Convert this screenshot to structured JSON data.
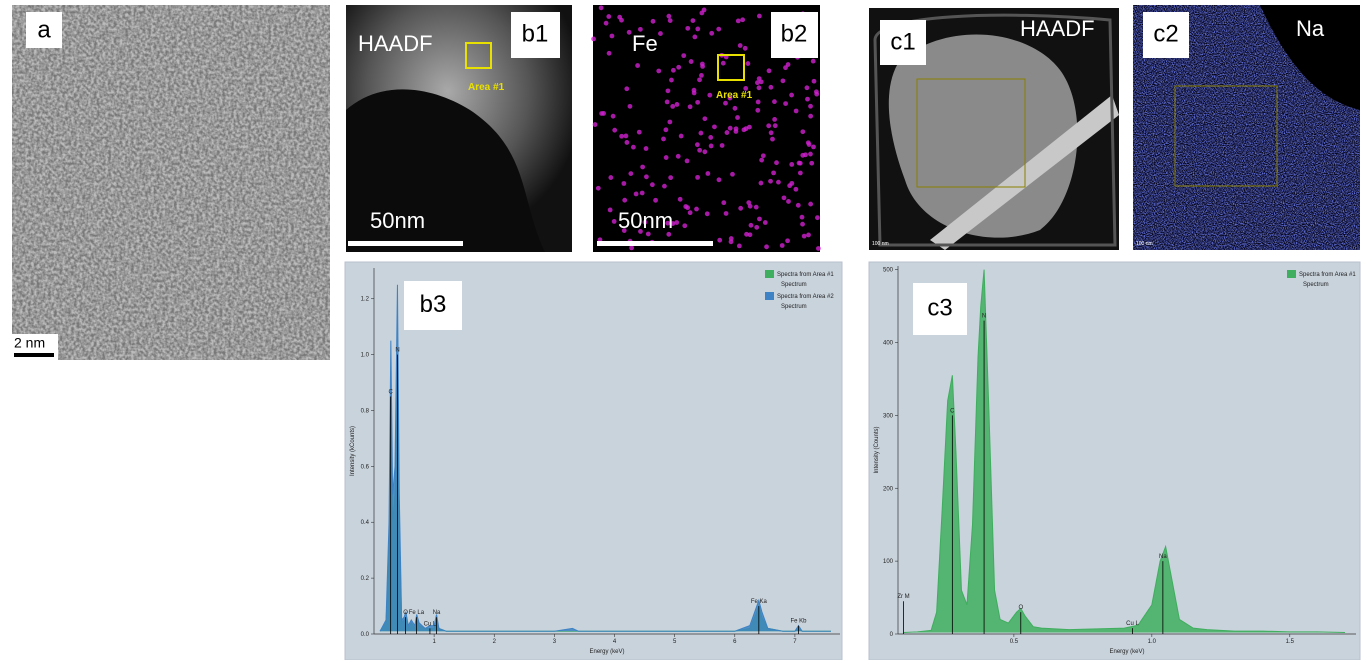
{
  "panels": {
    "a": {
      "label": "a",
      "scale_bar": "2 nm"
    },
    "b1": {
      "label": "b1",
      "title": "HAADF",
      "area": "Area #1",
      "scale_bar": "50nm"
    },
    "b2": {
      "label": "b2",
      "title": "Fe",
      "area": "Area #1",
      "scale_bar": "50nm"
    },
    "c1": {
      "label": "c1",
      "title": "HAADF",
      "scale_bar": "100 nm"
    },
    "c2": {
      "label": "c2",
      "title": "Na",
      "scale_bar": "100 nm"
    }
  },
  "chart_data": [
    {
      "type": "area",
      "panel_label": "b3",
      "x_label": "Energy (keV)",
      "y_label": "Intensity (kCounts)",
      "xlim": [
        0,
        7.75
      ],
      "ylim": [
        0,
        1.31
      ],
      "xticks": [
        1,
        2,
        3,
        4,
        5,
        6,
        7
      ],
      "yticks": [
        {
          "value": 0,
          "label": "0.0"
        },
        0.2,
        0.4,
        0.6,
        0.8,
        {
          "value": 1,
          "label": "1.0"
        },
        1.2
      ],
      "x": [
        0.1,
        0.2,
        0.25,
        0.28,
        0.31,
        0.35,
        0.39,
        0.42,
        0.46,
        0.5,
        0.53,
        0.57,
        0.62,
        0.68,
        0.71,
        0.75,
        0.85,
        0.93,
        1.0,
        1.04,
        1.08,
        1.2,
        1.5,
        2.0,
        2.5,
        3.0,
        3.3,
        3.4,
        3.6,
        4.0,
        4.5,
        5.0,
        5.5,
        6.0,
        6.25,
        6.35,
        6.4,
        6.45,
        6.55,
        6.8,
        7.0,
        7.06,
        7.12,
        7.3,
        7.6
      ],
      "series": [
        {
          "name": "Spectra from Area #1",
          "description": "Spectrum",
          "color": "#3fae5e",
          "values": [
            0.01,
            0.04,
            0.3,
            0.85,
            0.4,
            0.5,
            1.0,
            0.4,
            0.04,
            0.05,
            0.06,
            0.02,
            0.04,
            0.02,
            0.05,
            0.03,
            0.02,
            0.02,
            0.02,
            0.05,
            0.02,
            0.01,
            0.01,
            0.01,
            0.01,
            0.01,
            0.01,
            0.01,
            0.01,
            0.01,
            0.01,
            0.01,
            0.01,
            0.01,
            0.02,
            0.07,
            0.1,
            0.06,
            0.02,
            0.01,
            0.01,
            0.02,
            0.01,
            0.01,
            0.01
          ]
        },
        {
          "name": "Spectra from Area #2",
          "description": "Spectrum",
          "color": "#3d82c4",
          "values": [
            0.01,
            0.05,
            0.4,
            1.05,
            0.5,
            0.6,
            1.25,
            0.5,
            0.05,
            0.06,
            0.08,
            0.03,
            0.05,
            0.03,
            0.07,
            0.04,
            0.02,
            0.03,
            0.03,
            0.07,
            0.02,
            0.01,
            0.01,
            0.01,
            0.01,
            0.01,
            0.02,
            0.01,
            0.01,
            0.01,
            0.01,
            0.01,
            0.01,
            0.01,
            0.03,
            0.09,
            0.12,
            0.08,
            0.02,
            0.01,
            0.01,
            0.03,
            0.01,
            0.01,
            0.01
          ]
        }
      ],
      "annotations": [
        {
          "label": "C",
          "x": 0.277,
          "y": 0.85
        },
        {
          "label": "N",
          "x": 0.392,
          "y": 1.0
        },
        {
          "label": "O",
          "x": 0.525,
          "y": 0.06
        },
        {
          "label": "Fe La",
          "x": 0.705,
          "y": 0.06
        },
        {
          "label": "Cu L",
          "x": 0.93,
          "y": 0.02
        },
        {
          "label": "Na",
          "x": 1.04,
          "y": 0.06
        },
        {
          "label": "Fe Ka",
          "x": 6.4,
          "y": 0.1
        },
        {
          "label": "Fe Kb",
          "x": 7.06,
          "y": 0.03
        }
      ]
    },
    {
      "type": "area",
      "panel_label": "c3",
      "x_label": "Energy (keV)",
      "y_label": "Intensity (Counts)",
      "xlim": [
        0.08,
        1.74
      ],
      "ylim": [
        0,
        505
      ],
      "xticks": [
        0.5,
        {
          "value": 1,
          "label": "1.0"
        },
        1.5
      ],
      "yticks": [
        0,
        100,
        200,
        300,
        400,
        500
      ],
      "x": [
        0.1,
        0.15,
        0.2,
        0.22,
        0.24,
        0.26,
        0.277,
        0.29,
        0.31,
        0.33,
        0.35,
        0.37,
        0.38,
        0.392,
        0.41,
        0.43,
        0.45,
        0.48,
        0.51,
        0.525,
        0.54,
        0.57,
        0.6,
        0.7,
        0.8,
        0.9,
        0.95,
        1.0,
        1.03,
        1.05,
        1.07,
        1.1,
        1.15,
        1.2,
        1.3,
        1.4,
        1.5,
        1.6,
        1.7
      ],
      "series": [
        {
          "name": "Spectra from Area #1",
          "description": "Spectrum",
          "color": "#3fae5e",
          "values": [
            2,
            3,
            5,
            30,
            170,
            320,
            355,
            250,
            60,
            40,
            150,
            380,
            450,
            500,
            300,
            60,
            20,
            15,
            30,
            35,
            25,
            10,
            8,
            6,
            7,
            8,
            12,
            40,
            100,
            120,
            80,
            20,
            8,
            6,
            4,
            4,
            3,
            3,
            2
          ]
        }
      ],
      "annotations": [
        {
          "label": "Zr M",
          "x": 0.1,
          "y": 45
        },
        {
          "label": "C",
          "x": 0.277,
          "y": 300
        },
        {
          "label": "N",
          "x": 0.392,
          "y": 430
        },
        {
          "label": "O",
          "x": 0.525,
          "y": 30
        },
        {
          "label": "Cu L",
          "x": 0.93,
          "y": 8
        },
        {
          "label": "Na",
          "x": 1.04,
          "y": 100
        }
      ]
    }
  ]
}
